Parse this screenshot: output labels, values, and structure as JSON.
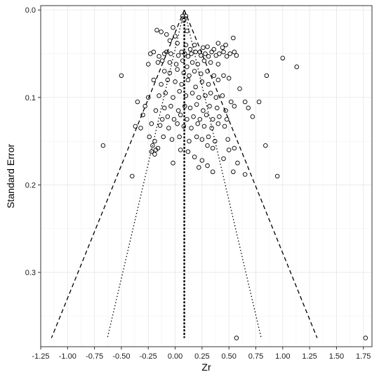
{
  "chart_data": {
    "type": "scatter",
    "title": "",
    "xlabel": "Zr",
    "ylabel": "Standard Error",
    "xlim": [
      -1.25,
      1.83
    ],
    "ylim": [
      0.385,
      -0.005
    ],
    "y_reversed": true,
    "grid": true,
    "legend": "none",
    "x_ticks": [
      "-1.25",
      "-1.00",
      "-0.75",
      "-0.50",
      "-0.25",
      "0.00",
      "0.25",
      "0.50",
      "0.75",
      "1.00",
      "1.25",
      "1.50",
      "1.75"
    ],
    "y_ticks": [
      "0.0",
      "0.1",
      "0.2",
      "0.3"
    ],
    "summary_effect": 0.085,
    "funnel_se_max": 0.375,
    "reference_lines": [
      {
        "name": "mean",
        "style": "dashed-thick",
        "x": [
          0.085,
          0.085
        ],
        "y": [
          0.008,
          0.375
        ]
      },
      {
        "name": "ci95-left",
        "style": "dashed",
        "x": [
          0.085,
          -1.15
        ],
        "y": [
          0.0,
          0.375
        ]
      },
      {
        "name": "ci95-right",
        "style": "dashed",
        "x": [
          0.085,
          1.32
        ],
        "y": [
          0.0,
          0.375
        ]
      },
      {
        "name": "inner-left",
        "style": "dotted",
        "x": [
          0.085,
          -0.63
        ],
        "y": [
          0.0,
          0.375
        ]
      },
      {
        "name": "inner-right",
        "style": "dotted",
        "x": [
          0.085,
          0.8
        ],
        "y": [
          0.0,
          0.375
        ]
      }
    ],
    "points": [
      [
        0.07,
        0.007
      ],
      [
        0.1,
        0.007
      ],
      [
        0.08,
        0.012
      ],
      [
        -0.17,
        0.023
      ],
      [
        -0.13,
        0.025
      ],
      [
        -0.02,
        0.02
      ],
      [
        -0.08,
        0.028
      ],
      [
        0.0,
        0.03
      ],
      [
        0.11,
        0.024
      ],
      [
        0.54,
        0.032
      ],
      [
        -0.05,
        0.035
      ],
      [
        0.02,
        0.038
      ],
      [
        0.1,
        0.04
      ],
      [
        0.14,
        0.045
      ],
      [
        0.18,
        0.04
      ],
      [
        0.26,
        0.043
      ],
      [
        0.3,
        0.042
      ],
      [
        0.36,
        0.045
      ],
      [
        0.44,
        0.043
      ],
      [
        0.47,
        0.04
      ],
      [
        0.4,
        0.038
      ],
      [
        0.23,
        0.048
      ],
      [
        -0.23,
        0.05
      ],
      [
        -0.2,
        0.048
      ],
      [
        -0.15,
        0.053
      ],
      [
        -0.1,
        0.05
      ],
      [
        -0.08,
        0.048
      ],
      [
        -0.04,
        0.05
      ],
      [
        0.03,
        0.052
      ],
      [
        0.06,
        0.048
      ],
      [
        0.09,
        0.05
      ],
      [
        0.12,
        0.053
      ],
      [
        0.15,
        0.05
      ],
      [
        0.19,
        0.048
      ],
      [
        0.24,
        0.052
      ],
      [
        0.28,
        0.05
      ],
      [
        0.31,
        0.053
      ],
      [
        0.34,
        0.048
      ],
      [
        0.38,
        0.052
      ],
      [
        0.41,
        0.05
      ],
      [
        0.45,
        0.048
      ],
      [
        0.48,
        0.053
      ],
      [
        0.51,
        0.05
      ],
      [
        0.55,
        0.048
      ],
      [
        0.57,
        0.052
      ],
      [
        -0.25,
        0.062
      ],
      [
        -0.16,
        0.06
      ],
      [
        -0.12,
        0.058
      ],
      [
        -0.05,
        0.06
      ],
      [
        0.01,
        0.062
      ],
      [
        0.07,
        0.058
      ],
      [
        0.11,
        0.065
      ],
      [
        0.16,
        0.06
      ],
      [
        0.21,
        0.062
      ],
      [
        0.27,
        0.058
      ],
      [
        0.33,
        0.06
      ],
      [
        0.4,
        0.062
      ],
      [
        1.0,
        0.055
      ],
      [
        1.13,
        0.065
      ],
      [
        -0.5,
        0.075
      ],
      [
        -0.1,
        0.07
      ],
      [
        -0.05,
        0.072
      ],
      [
        0.02,
        0.068
      ],
      [
        0.08,
        0.072
      ],
      [
        0.13,
        0.075
      ],
      [
        0.18,
        0.07
      ],
      [
        0.24,
        0.073
      ],
      [
        0.3,
        0.07
      ],
      [
        0.36,
        0.075
      ],
      [
        0.45,
        0.075
      ],
      [
        0.5,
        0.078
      ],
      [
        0.85,
        0.075
      ],
      [
        -0.2,
        0.08
      ],
      [
        -0.13,
        0.085
      ],
      [
        -0.07,
        0.08
      ],
      [
        0.0,
        0.082
      ],
      [
        0.06,
        0.085
      ],
      [
        0.12,
        0.08
      ],
      [
        0.19,
        0.088
      ],
      [
        0.25,
        0.082
      ],
      [
        0.31,
        0.085
      ],
      [
        0.4,
        0.08
      ],
      [
        0.6,
        0.09
      ],
      [
        -0.35,
        0.105
      ],
      [
        -0.25,
        0.1
      ],
      [
        -0.15,
        0.098
      ],
      [
        -0.09,
        0.095
      ],
      [
        -0.02,
        0.1
      ],
      [
        0.04,
        0.093
      ],
      [
        0.1,
        0.098
      ],
      [
        0.16,
        0.095
      ],
      [
        0.22,
        0.1
      ],
      [
        0.28,
        0.098
      ],
      [
        0.33,
        0.095
      ],
      [
        0.38,
        0.1
      ],
      [
        0.44,
        0.098
      ],
      [
        0.52,
        0.105
      ],
      [
        0.65,
        0.105
      ],
      [
        0.78,
        0.105
      ],
      [
        -0.28,
        0.11
      ],
      [
        -0.18,
        0.115
      ],
      [
        -0.1,
        0.112
      ],
      [
        -0.04,
        0.11
      ],
      [
        0.03,
        0.115
      ],
      [
        0.09,
        0.11
      ],
      [
        0.14,
        0.112
      ],
      [
        0.2,
        0.108
      ],
      [
        0.26,
        0.115
      ],
      [
        0.32,
        0.11
      ],
      [
        0.39,
        0.112
      ],
      [
        0.47,
        0.115
      ],
      [
        0.55,
        0.11
      ],
      [
        0.68,
        0.112
      ],
      [
        -0.3,
        0.12
      ],
      [
        -0.12,
        0.125
      ],
      [
        -0.07,
        0.122
      ],
      [
        -0.01,
        0.125
      ],
      [
        0.05,
        0.12
      ],
      [
        0.11,
        0.125
      ],
      [
        0.17,
        0.122
      ],
      [
        0.23,
        0.125
      ],
      [
        0.29,
        0.12
      ],
      [
        0.35,
        0.125
      ],
      [
        0.41,
        0.122
      ],
      [
        0.48,
        0.125
      ],
      [
        0.72,
        0.122
      ],
      [
        -0.37,
        0.133
      ],
      [
        -0.32,
        0.135
      ],
      [
        -0.22,
        0.13
      ],
      [
        -0.14,
        0.132
      ],
      [
        -0.06,
        0.135
      ],
      [
        0.02,
        0.13
      ],
      [
        0.08,
        0.133
      ],
      [
        0.15,
        0.135
      ],
      [
        0.21,
        0.13
      ],
      [
        0.27,
        0.133
      ],
      [
        0.34,
        0.135
      ],
      [
        0.4,
        0.13
      ],
      [
        0.46,
        0.133
      ],
      [
        -0.24,
        0.145
      ],
      [
        -0.19,
        0.15
      ],
      [
        -0.11,
        0.145
      ],
      [
        -0.03,
        0.148
      ],
      [
        0.04,
        0.145
      ],
      [
        0.13,
        0.15
      ],
      [
        0.2,
        0.145
      ],
      [
        0.25,
        0.148
      ],
      [
        0.31,
        0.145
      ],
      [
        0.37,
        0.15
      ],
      [
        0.49,
        0.148
      ],
      [
        -0.67,
        0.155
      ],
      [
        -0.21,
        0.155
      ],
      [
        -0.18,
        0.16
      ],
      [
        -0.16,
        0.158
      ],
      [
        -0.22,
        0.162
      ],
      [
        0.05,
        0.16
      ],
      [
        0.12,
        0.162
      ],
      [
        0.3,
        0.155
      ],
      [
        0.35,
        0.158
      ],
      [
        0.5,
        0.16
      ],
      [
        0.55,
        0.158
      ],
      [
        0.84,
        0.155
      ],
      [
        -0.19,
        0.165
      ],
      [
        0.18,
        0.168
      ],
      [
        0.25,
        0.172
      ],
      [
        0.45,
        0.17
      ],
      [
        0.58,
        0.175
      ],
      [
        -0.02,
        0.175
      ],
      [
        0.22,
        0.18
      ],
      [
        0.3,
        0.178
      ],
      [
        -0.4,
        0.19
      ],
      [
        0.35,
        0.185
      ],
      [
        0.54,
        0.185
      ],
      [
        0.65,
        0.188
      ],
      [
        0.95,
        0.19
      ],
      [
        0.57,
        0.375
      ],
      [
        1.77,
        0.375
      ]
    ]
  }
}
